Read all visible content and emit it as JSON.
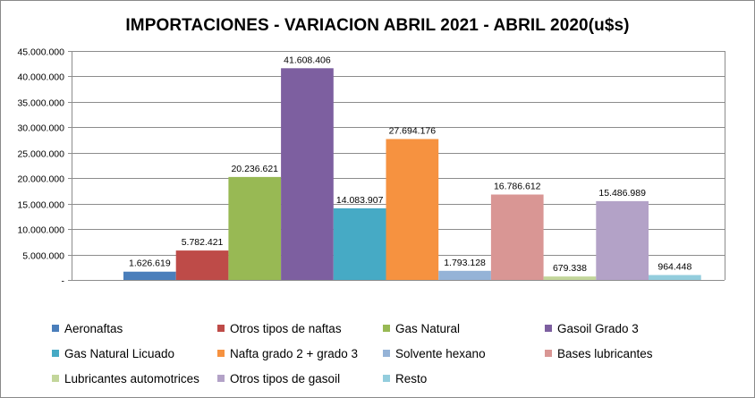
{
  "chart_data": {
    "type": "bar",
    "title": "IMPORTACIONES - VARIACION ABRIL 2021 - ABRIL 2020(u$s)",
    "xlabel": "",
    "ylabel": "",
    "ylim": [
      0,
      45000000
    ],
    "yticks": [
      {
        "value": 0,
        "label": "-"
      },
      {
        "value": 5000000,
        "label": "5.000.000"
      },
      {
        "value": 10000000,
        "label": "10.000.000"
      },
      {
        "value": 15000000,
        "label": "15.000.000"
      },
      {
        "value": 20000000,
        "label": "20.000.000"
      },
      {
        "value": 25000000,
        "label": "25.000.000"
      },
      {
        "value": 30000000,
        "label": "30.000.000"
      },
      {
        "value": 35000000,
        "label": "35.000.000"
      },
      {
        "value": 40000000,
        "label": "40.000.000"
      },
      {
        "value": 45000000,
        "label": "45.000.000"
      }
    ],
    "grid": true,
    "legend_position": "bottom",
    "series": [
      {
        "name": "Aeronaftas",
        "value": 1626619,
        "label": "1.626.619",
        "color": "#4a7ebb"
      },
      {
        "name": "Otros tipos de naftas",
        "value": 5782421,
        "label": "5.782.421",
        "color": "#be4b48"
      },
      {
        "name": "Gas Natural",
        "value": 20236621,
        "label": "20.236.621",
        "color": "#98b954"
      },
      {
        "name": "Gasoil Grado 3",
        "value": 41608406,
        "label": "41.608.406",
        "color": "#7d5fa0"
      },
      {
        "name": "Gas Natural Licuado",
        "value": 14083907,
        "label": "14.083.907",
        "color": "#46aac5"
      },
      {
        "name": "Nafta grado 2 + grado 3",
        "value": 27694176,
        "label": "27.694.176",
        "color": "#f69240"
      },
      {
        "name": "Solvente hexano",
        "value": 1793128,
        "label": "1.793.128",
        "color": "#95b3d7"
      },
      {
        "name": "Bases lubricantes",
        "value": 16786612,
        "label": "16.786.612",
        "color": "#d99694"
      },
      {
        "name": "Lubricantes automotrices",
        "value": 679338,
        "label": "679.338",
        "color": "#c3d69b"
      },
      {
        "name": "Otros tipos de gasoil",
        "value": 15486989,
        "label": "15.486.989",
        "color": "#b3a2c7"
      },
      {
        "name": "Resto",
        "value": 964448,
        "label": "964.448",
        "color": "#93cddd"
      }
    ]
  }
}
